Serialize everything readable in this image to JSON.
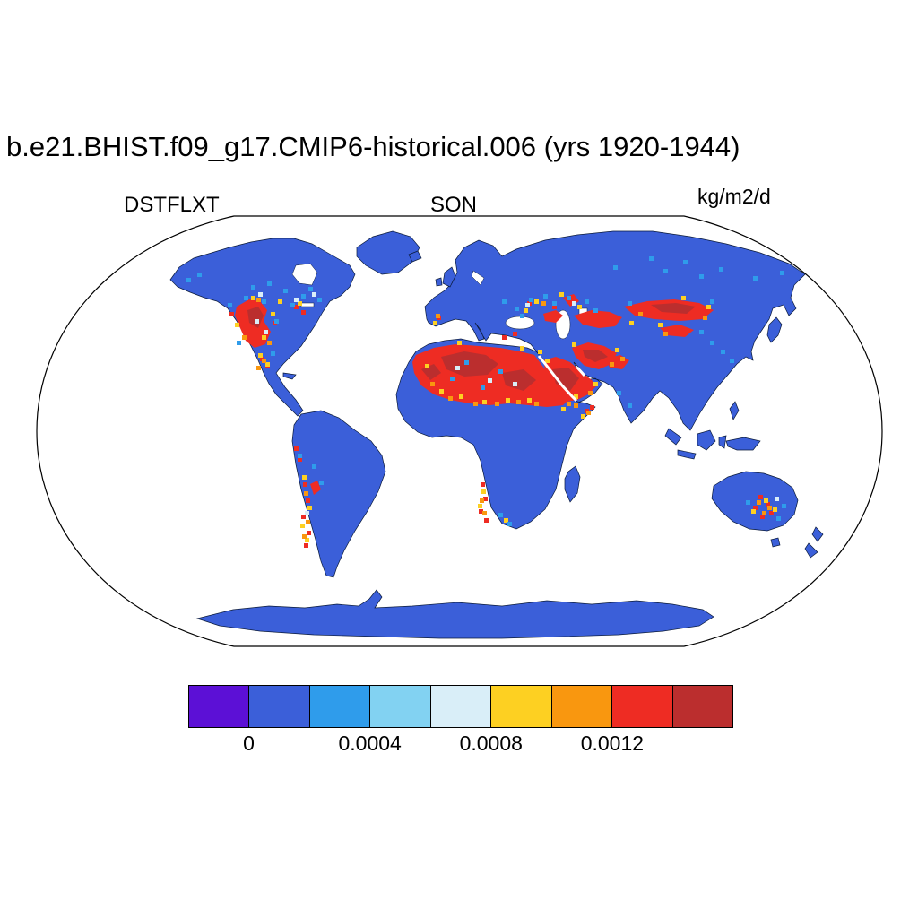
{
  "title": "b.e21.BHIST.f09_g17.CMIP6-historical.006 (yrs 1920-1944)",
  "labels": {
    "variable": "DSTFLXT",
    "season": "SON",
    "units": "kg/m2/d"
  },
  "chart_data": {
    "type": "heatmap",
    "map_projection": "Robinson",
    "title": "b.e21.BHIST.f09_g17.CMIP6-historical.006 (yrs 1920-1944)",
    "variable": "DSTFLXT",
    "season": "SON",
    "units": "kg/m2/d",
    "ocean_fill": "#ffffff",
    "outline_color": "#000000",
    "colorbar": {
      "orientation": "horizontal",
      "colors": [
        "#5c10d6",
        "#3b5fd9",
        "#2f9ceb",
        "#82d2f2",
        "#d9eef8",
        "#fdd022",
        "#f9970f",
        "#ee2c23",
        "#bb2e2e"
      ],
      "boundary_values": [
        0,
        0.0002,
        0.0004,
        0.0006,
        0.0008,
        0.001,
        0.0012,
        0.0014
      ],
      "tick_labels": [
        "0",
        "0.0004",
        "0.0008",
        "0.0012"
      ]
    },
    "base_land_bin": "0 to 0.0002 (royal blue, most land)",
    "high_dust_regions": [
      "Sahara Desert",
      "Arabian Peninsula",
      "Mesopotamia-Iran",
      "Caspian-Aral region",
      "Central Asia / Kazakhstan band",
      "Taklamakan",
      "Western United States",
      "Northern Mexico",
      "Andes-Patagonia coast",
      "Namib coast",
      "Horn of Africa / Red Sea coasts",
      "Central Australia",
      "Southern Spain",
      "Anatolia spots",
      "Volga region spots"
    ],
    "moderate_dust_regions": [
      "Canadian Prairies (light blue speckles)",
      "Eastern Europe / Ukraine (light blue speckles)",
      "Siberia scattered speckles",
      "Northern China speckles",
      "India speckles"
    ]
  }
}
